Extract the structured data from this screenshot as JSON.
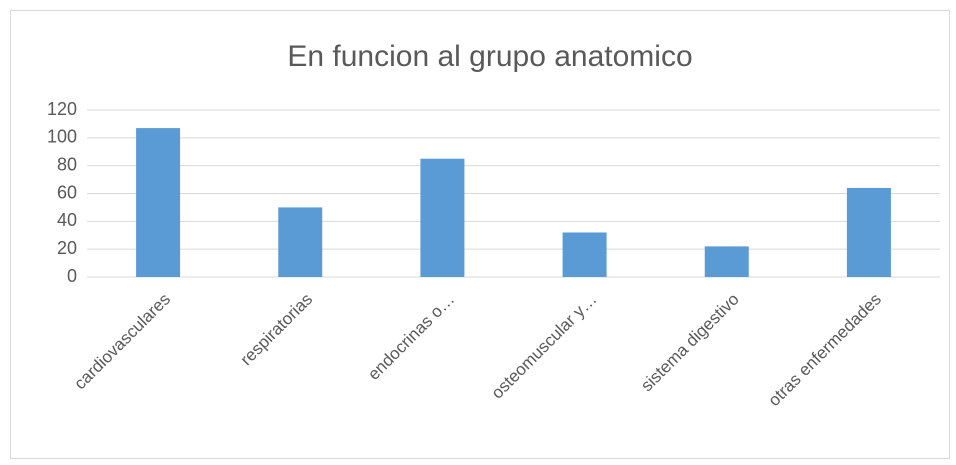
{
  "chart_data": {
    "type": "bar",
    "title": "En funcion al grupo anatomico",
    "categories": [
      "cardiovasculares",
      "respiratorias",
      "endocrinas o…",
      "osteomuscular y…",
      "sistema digestivo",
      "otras enfermedades"
    ],
    "values": [
      107,
      50,
      85,
      32,
      22,
      64
    ],
    "color": "#5b9bd5",
    "ylim": [
      0,
      120
    ],
    "yticks": [
      0,
      20,
      40,
      60,
      80,
      100,
      120
    ],
    "grid": true
  }
}
